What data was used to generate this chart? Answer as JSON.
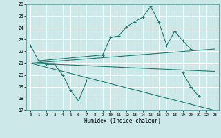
{
  "title": "",
  "xlabel": "Humidex (Indice chaleur)",
  "background_color": "#cde8e8",
  "grid_color": "#ffffff",
  "line_color": "#1a7a6e",
  "xlim": [
    -0.5,
    23.5
  ],
  "ylim": [
    17,
    26
  ],
  "xticks": [
    0,
    1,
    2,
    3,
    4,
    5,
    6,
    7,
    8,
    9,
    10,
    11,
    12,
    13,
    14,
    15,
    16,
    17,
    18,
    19,
    20,
    21,
    22,
    23
  ],
  "yticks": [
    17,
    18,
    19,
    20,
    21,
    22,
    23,
    24,
    25,
    26
  ],
  "series": [
    {
      "x": [
        0,
        1,
        2,
        3,
        4,
        5,
        6,
        7
      ],
      "y": [
        22.5,
        21.2,
        20.9,
        20.9,
        20.0,
        18.7,
        17.8,
        19.5
      ],
      "marker": true
    },
    {
      "x": [
        19,
        20,
        21
      ],
      "y": [
        20.2,
        19.0,
        18.2
      ],
      "marker": true
    },
    {
      "x": [
        1,
        9,
        10,
        11,
        12,
        13,
        14,
        15,
        16,
        17,
        18,
        19,
        20
      ],
      "y": [
        21.2,
        21.7,
        23.2,
        23.3,
        24.1,
        24.5,
        24.9,
        25.8,
        24.5,
        22.5,
        23.7,
        22.9,
        22.2
      ],
      "marker": true
    },
    {
      "x": [
        0,
        23
      ],
      "y": [
        21.0,
        22.2
      ],
      "marker": false
    },
    {
      "x": [
        0,
        23
      ],
      "y": [
        21.0,
        20.3
      ],
      "marker": false
    },
    {
      "x": [
        0,
        23
      ],
      "y": [
        21.0,
        17.0
      ],
      "marker": false
    }
  ]
}
